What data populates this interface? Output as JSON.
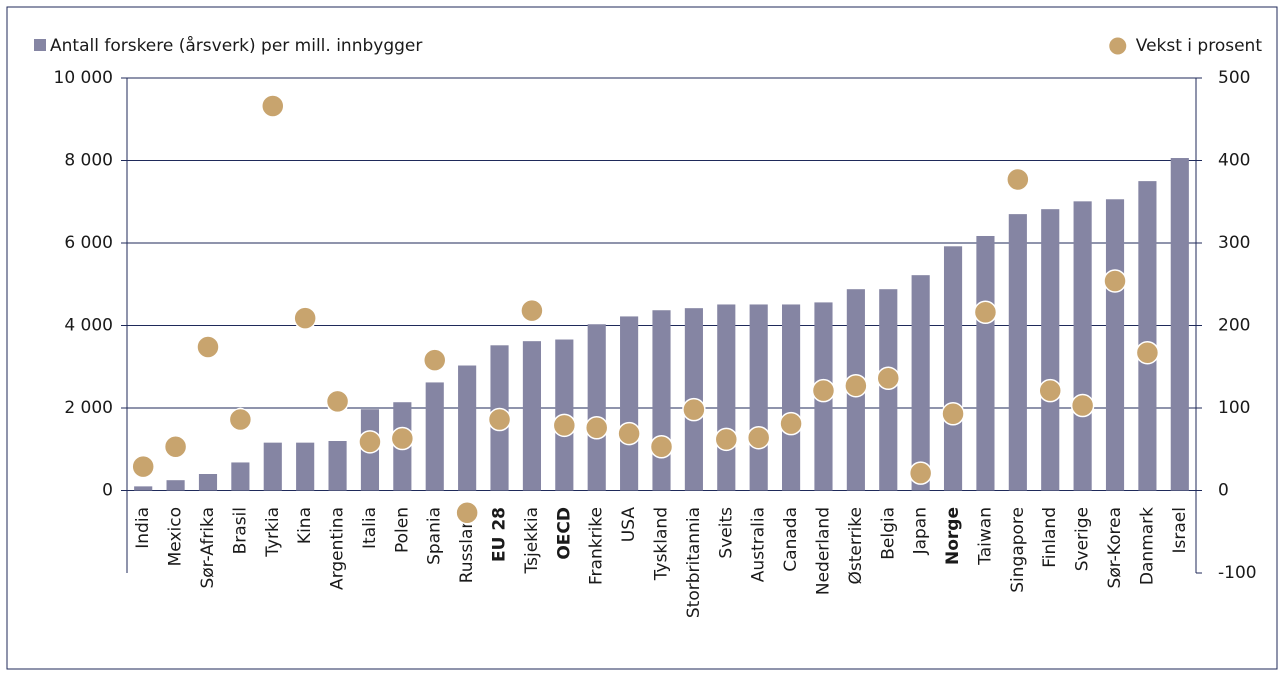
{
  "chart_data": {
    "type": "bar_scatter",
    "categories": [
      "India",
      "Mexico",
      "Sør-Afrika",
      "Brasil",
      "Tyrkia",
      "Kina",
      "Argentina",
      "Italia",
      "Polen",
      "Spania",
      "Russland",
      "EU 28",
      "Tsjekkia",
      "OECD",
      "Frankrike",
      "USA",
      "Tyskland",
      "Storbritannia",
      "Sveits",
      "Australia",
      "Canada",
      "Nederland",
      "Østerrike",
      "Belgia",
      "Japan",
      "Norge",
      "Taiwan",
      "Singapore",
      "Finland",
      "Sverige",
      "Sør-Korea",
      "Danmark",
      "Israel"
    ],
    "bold": [
      false,
      false,
      false,
      false,
      false,
      false,
      false,
      false,
      false,
      false,
      false,
      true,
      false,
      true,
      false,
      false,
      false,
      false,
      false,
      false,
      false,
      false,
      false,
      false,
      false,
      true,
      false,
      false,
      false,
      false,
      false,
      false,
      false
    ],
    "series": [
      {
        "name": "Antall forskere (årsverk) per mill. innbygger",
        "type": "bar",
        "color": "#8585a3",
        "axis": "y",
        "values": [
          100,
          250,
          400,
          680,
          1160,
          1160,
          1200,
          1970,
          2140,
          2620,
          3030,
          3520,
          3620,
          3660,
          4030,
          4220,
          4370,
          4420,
          4510,
          4510,
          4510,
          4560,
          4880,
          4880,
          5220,
          5920,
          6170,
          6700,
          6820,
          7010,
          7060,
          7500,
          8060
        ]
      },
      {
        "name": "Vekst i prosent",
        "type": "scatter",
        "color": "#c8a46e",
        "axis": "y2",
        "values": [
          29,
          53,
          174,
          86,
          466,
          209,
          108,
          59,
          63,
          158,
          -27,
          86,
          218,
          79,
          76,
          69,
          53,
          98,
          62,
          64,
          81,
          121,
          127,
          136,
          21,
          93,
          216,
          377,
          121,
          103,
          254,
          167,
          null
        ]
      }
    ],
    "ylim": [
      -2000,
      10000
    ],
    "yticks": [
      0,
      {
        "value": 2000,
        "label": "2 000"
      },
      {
        "value": 4000,
        "label": "4 000"
      },
      {
        "value": 6000,
        "label": "6 000"
      },
      {
        "value": 8000,
        "label": "8 000"
      },
      {
        "value": 10000,
        "label": "10 000"
      }
    ],
    "y2lim": [
      -100,
      500
    ],
    "y2ticks": [
      -100,
      0,
      100,
      200,
      300,
      400,
      500
    ],
    "grid": true
  }
}
